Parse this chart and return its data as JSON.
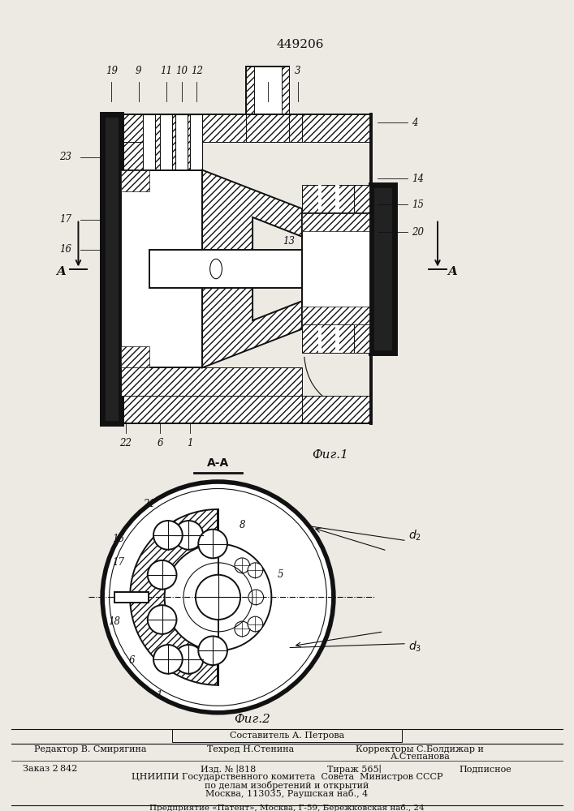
{
  "patent_number": "449206",
  "fig1_caption": "Фиг.1",
  "fig2_caption": "Фиг.2",
  "section_label": "A-A",
  "bg_color": "#f0ede8",
  "footer_sestavitel": "Составитель А. Петрова",
  "footer_editor": "Редактор В. Смирягина",
  "footer_techred": "Техред Н.Стенина",
  "footer_korrektory": "Корректоры С.Болдижар и",
  "footer_stepanova": "А.Степанова",
  "footer_zakaz": "Заказ 2 842",
  "footer_izd": "Изд. № ∣818",
  "footer_tirazh": "Тираж 565∣",
  "footer_podpisnoe": "Подписное",
  "footer_cnipi1": "ЦНИИПИ Государственного комитета  Совета  Министров СССР",
  "footer_cnipi2": "по делам изобретений и открытий",
  "footer_cnipi3": "Москва, 113035, Раушская наб., 4",
  "footer_patent": "Предприятие «Патент», Москва, Г-59, Бережковская наб., 24"
}
